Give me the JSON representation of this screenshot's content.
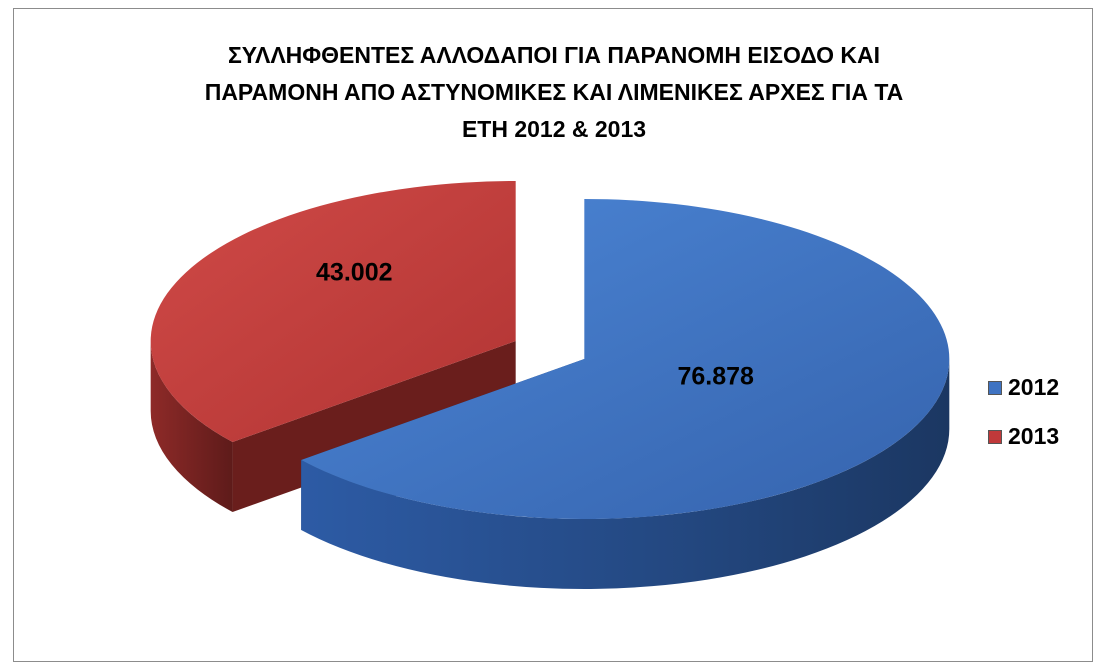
{
  "chart_data": {
    "type": "pie",
    "style": "3d-exploded",
    "title_lines": [
      "ΣΥΛΛΗΦΘΕΝΤΕΣ ΑΛΛΟΔΑΠΟΙ ΓΙΑ ΠΑΡΑΝΟΜΗ ΕΙΣΟΔΟ ΚΑΙ",
      "ΠΑΡΑΜΟΝΗ ΑΠΟ ΑΣΤΥΝΟΜΙΚΕΣ ΚΑΙ ΛΙΜΕΝΙΚΕΣ ΑΡΧΕΣ ΓΙΑ ΤΑ",
      "ΕΤΗ 2012 & 2013"
    ],
    "legend_position": "right",
    "slices": [
      {
        "label": "2012",
        "value": 76878,
        "value_label": "76.878",
        "color": "#3f73c2"
      },
      {
        "label": "2013",
        "value": 43002,
        "value_label": "43.002",
        "color": "#c0393a"
      }
    ]
  }
}
